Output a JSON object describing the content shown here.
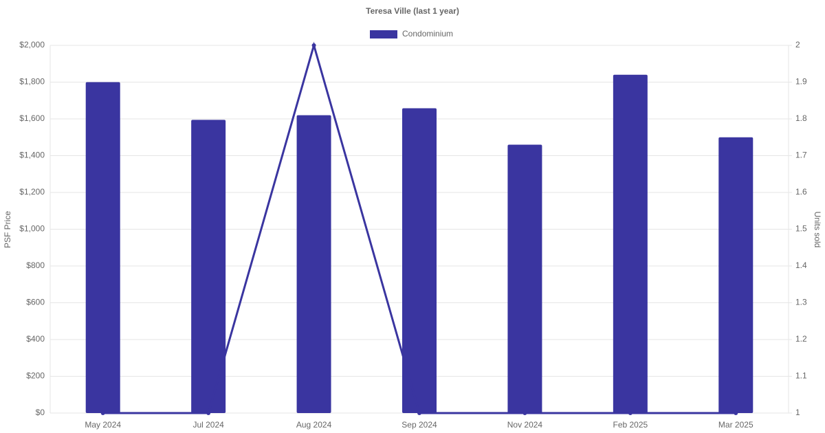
{
  "chart_data": {
    "type": "bar-line",
    "title": "Teresa Ville (last 1 year)",
    "y_label": "PSF Price",
    "y2_label": "Units sold",
    "categories": [
      "May 2024",
      "Jul 2024",
      "Aug 2024",
      "Sep 2024",
      "Nov 2024",
      "Feb 2025",
      "Mar 2025"
    ],
    "series": [
      {
        "name": "Condominium",
        "type": "bar",
        "color": "#3a35a0",
        "values": [
          1800,
          1595,
          1620,
          1658,
          1460,
          1840,
          1500
        ]
      },
      {
        "type": "line",
        "axis": "y2",
        "color": "#3a35a0",
        "values": [
          1,
          1,
          2,
          1,
          1,
          1,
          1
        ]
      }
    ],
    "ylim": [
      0,
      2000
    ],
    "yticks": [
      {
        "value": 0,
        "label": "$0"
      },
      {
        "value": 200,
        "label": "$200"
      },
      {
        "value": 400,
        "label": "$400"
      },
      {
        "value": 600,
        "label": "$600"
      },
      {
        "value": 800,
        "label": "$800"
      },
      {
        "value": 1000,
        "label": "$1,000"
      },
      {
        "value": 1200,
        "label": "$1,200"
      },
      {
        "value": 1400,
        "label": "$1,400"
      },
      {
        "value": 1600,
        "label": "$1,600"
      },
      {
        "value": 1800,
        "label": "$1,800"
      },
      {
        "value": 2000,
        "label": "$2,000"
      }
    ],
    "y2lim": [
      1,
      2
    ],
    "y2ticks": [
      1,
      1.1,
      1.2,
      1.3,
      1.4,
      1.5,
      1.6,
      1.7,
      1.8,
      1.9,
      2
    ],
    "grid": true,
    "legend": "top"
  }
}
